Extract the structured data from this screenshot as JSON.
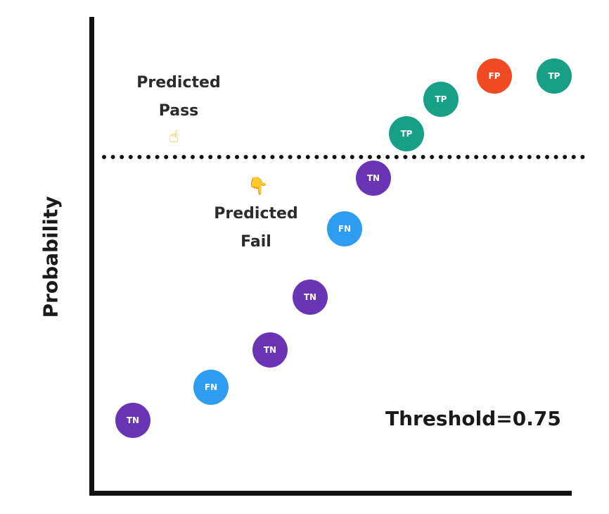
{
  "chart_data": {
    "type": "scatter",
    "title": "",
    "ylabel": "Probability",
    "xlabel": "",
    "threshold": 0.75,
    "threshold_label": "Threshold=0.75",
    "regions": {
      "above": "Predicted Pass",
      "below": "Predicted Fail"
    },
    "points": [
      {
        "x": 1,
        "y": 0.1,
        "label": "TN"
      },
      {
        "x": 2,
        "y": 0.23,
        "label": "FN"
      },
      {
        "x": 3,
        "y": 0.32,
        "label": "TN"
      },
      {
        "x": 4,
        "y": 0.42,
        "label": "TN"
      },
      {
        "x": 5,
        "y": 0.56,
        "label": "FN"
      },
      {
        "x": 6,
        "y": 0.68,
        "label": "TN"
      },
      {
        "x": 7,
        "y": 0.78,
        "label": "TP"
      },
      {
        "x": 8,
        "y": 0.85,
        "label": "TP"
      },
      {
        "x": 9,
        "y": 0.9,
        "label": "FP"
      },
      {
        "x": 10,
        "y": 0.9,
        "label": "TP"
      }
    ],
    "colors": {
      "TN": "#6a35b5",
      "FN": "#2e9cf0",
      "TP": "#17a085",
      "FP": "#f24a22"
    },
    "grid": false
  },
  "annotations": {
    "pass_line1": "Predicted",
    "pass_line2": "Pass",
    "fail_line1": "Predicted",
    "fail_line2": "Fail",
    "pass_icon": "pointing-up-hand-icon",
    "fail_icon": "pointing-down-hand-icon"
  }
}
